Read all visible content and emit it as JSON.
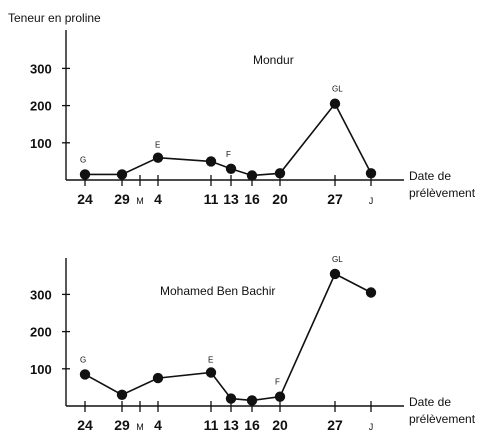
{
  "y_axis_label": "Teneur en proline",
  "x_axis_label": [
    "Date de",
    "prélèvement"
  ],
  "chart_data": [
    {
      "type": "line",
      "title": "Mondur",
      "ylabel": "Teneur en proline",
      "xlabel": "Date de prélèvement",
      "yticks": [
        "100",
        "200",
        "300"
      ],
      "ylim": [
        0,
        370
      ],
      "xticks": [
        {
          "label": "24",
          "small": false
        },
        {
          "label": "29",
          "small": false
        },
        {
          "label": "M",
          "small": true
        },
        {
          "label": "4",
          "small": false
        },
        {
          "label": "11",
          "small": false
        },
        {
          "label": "13",
          "small": false
        },
        {
          "label": "16",
          "small": false
        },
        {
          "label": "20",
          "small": false
        },
        {
          "label": "27",
          "small": false
        },
        {
          "label": "J",
          "small": true
        }
      ],
      "points": [
        {
          "x": "24",
          "y": 15,
          "ann": "G"
        },
        {
          "x": "29",
          "y": 15,
          "ann": ""
        },
        {
          "x": "4",
          "y": 60,
          "ann": "E"
        },
        {
          "x": "11",
          "y": 50,
          "ann": ""
        },
        {
          "x": "13",
          "y": 30,
          "ann": "F"
        },
        {
          "x": "16",
          "y": 12,
          "ann": ""
        },
        {
          "x": "20",
          "y": 18,
          "ann": ""
        },
        {
          "x": "27",
          "y": 205,
          "ann": "GL"
        },
        {
          "x": "J",
          "y": 18,
          "ann": ""
        }
      ]
    },
    {
      "type": "line",
      "title": "Mohamed Ben Bachir",
      "ylabel": "",
      "xlabel": "Date de prélèvement",
      "yticks": [
        "100",
        "200",
        "300"
      ],
      "ylim": [
        0,
        370
      ],
      "xticks": [
        {
          "label": "24",
          "small": false
        },
        {
          "label": "29",
          "small": false
        },
        {
          "label": "M",
          "small": true
        },
        {
          "label": "4",
          "small": false
        },
        {
          "label": "11",
          "small": false
        },
        {
          "label": "13",
          "small": false
        },
        {
          "label": "16",
          "small": false
        },
        {
          "label": "20",
          "small": false
        },
        {
          "label": "27",
          "small": false
        },
        {
          "label": "J",
          "small": true
        }
      ],
      "points": [
        {
          "x": "24",
          "y": 85,
          "ann": "G"
        },
        {
          "x": "29",
          "y": 30,
          "ann": ""
        },
        {
          "x": "4",
          "y": 75,
          "ann": ""
        },
        {
          "x": "11",
          "y": 90,
          "ann": "E"
        },
        {
          "x": "13",
          "y": 20,
          "ann": ""
        },
        {
          "x": "16",
          "y": 15,
          "ann": ""
        },
        {
          "x": "20",
          "y": 25,
          "ann": "F"
        },
        {
          "x": "27",
          "y": 355,
          "ann": "GL"
        },
        {
          "x": "J",
          "y": 305,
          "ann": ""
        }
      ]
    }
  ]
}
